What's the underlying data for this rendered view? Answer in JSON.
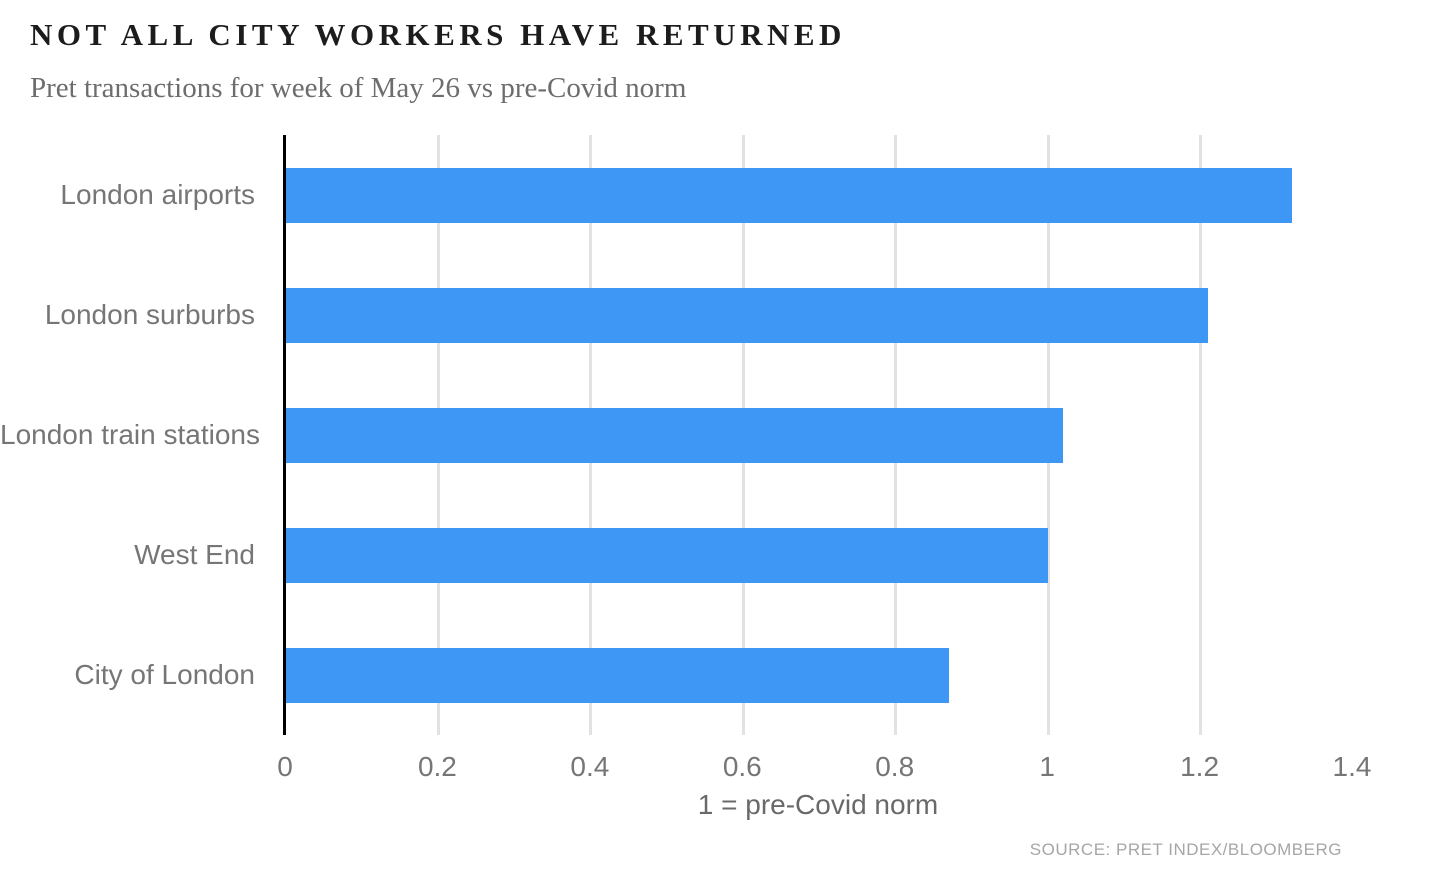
{
  "header": {
    "title": "NOT ALL CITY WORKERS HAVE RETURNED",
    "subtitle": "Pret transactions for week of May 26 vs pre-Covid norm"
  },
  "source": "SOURCE: PRET INDEX/BLOOMBERG",
  "colors": {
    "bar": "#3e97f4",
    "gridline": "#e2e2e2",
    "axis_line": "#000000",
    "title": "#1c1c1c",
    "subtitle": "#6d6d6d",
    "label": "#767676",
    "tick": "#767676",
    "axis_label": "#696969",
    "source": "#a6a6a6",
    "background": "#ffffff"
  },
  "chart_data": {
    "type": "bar",
    "orientation": "horizontal",
    "title": "NOT ALL CITY WORKERS HAVE RETURNED",
    "subtitle": "Pret transactions for week of May 26 vs pre-Covid norm",
    "categories": [
      "London airports",
      "London surburbs",
      "London train stations",
      "West End",
      "City of London"
    ],
    "values": [
      1.32,
      1.21,
      1.02,
      1.0,
      0.87
    ],
    "xlabel": "1 = pre-Covid norm",
    "ylabel": "",
    "xlim": [
      0,
      1.4
    ],
    "xticks": [
      0,
      0.2,
      0.4,
      0.6,
      0.8,
      1,
      1.2,
      1.4
    ],
    "xtick_labels": [
      "0",
      "0.2",
      "0.4",
      "0.6",
      "0.8",
      "1",
      "1.2",
      "1.4"
    ],
    "gridline_values": [
      0.2,
      0.4,
      0.6,
      0.8,
      1,
      1.2
    ],
    "grid": true,
    "legend": false,
    "bar_color": "#3e97f4"
  }
}
